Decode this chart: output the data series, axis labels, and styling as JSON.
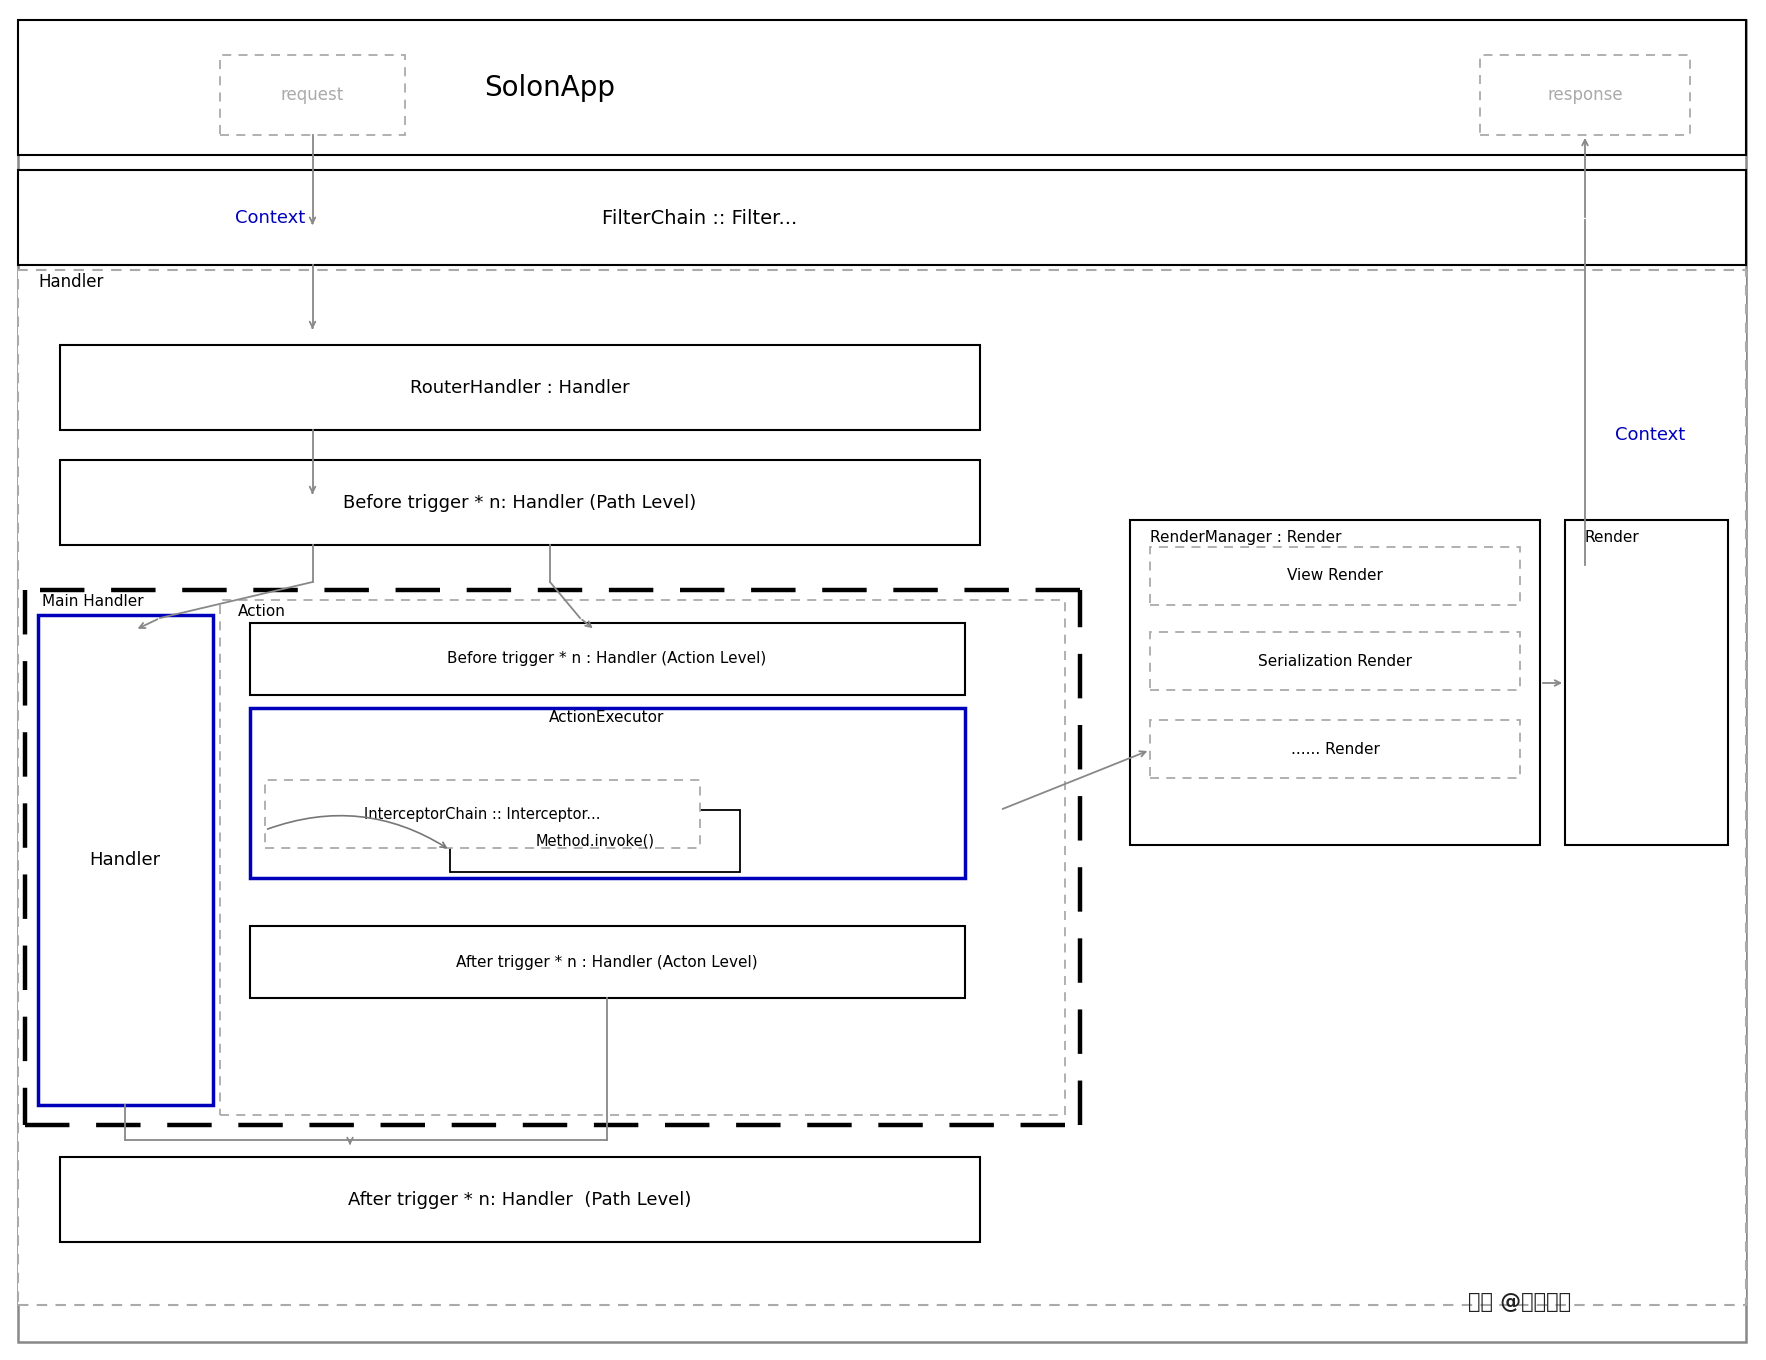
{
  "bg_color": "#ffffff",
  "title_text": "SolonApp",
  "request_text": "request",
  "response_text": "response",
  "context_text1": "Context",
  "context_text2": "Context",
  "filterchain_text": "FilterChain :: Filter...",
  "handler_label": "Handler",
  "router_text": "RouterHandler : Handler",
  "before_path_text": "Before trigger * n: Handler (Path Level)",
  "main_handler_label": "Main Handler",
  "action_label": "Action",
  "handler_box_text": "Handler",
  "before_action_text": "Before trigger * n : Handler (Action Level)",
  "action_executor_label": "ActionExecutor",
  "interceptor_text": "InterceptorChain :: Interceptor...",
  "method_invoke_text": "Method.invoke()",
  "after_action_text": "After trigger * n : Handler (Acton Level)",
  "after_path_text": "After trigger * n: Handler  (Path Level)",
  "render_manager_text": "RenderManager : Render",
  "view_render_text": "View Render",
  "serial_render_text": "Serialization Render",
  "dots_render_text": "...... Render",
  "render_text": "Render",
  "watermark": "头条 @一飞开源",
  "blue_color": "#0000bb",
  "arrow_color": "#888888",
  "border_color": "#666666",
  "light_gray": "#aaaaaa",
  "dashed_color": "#999999"
}
